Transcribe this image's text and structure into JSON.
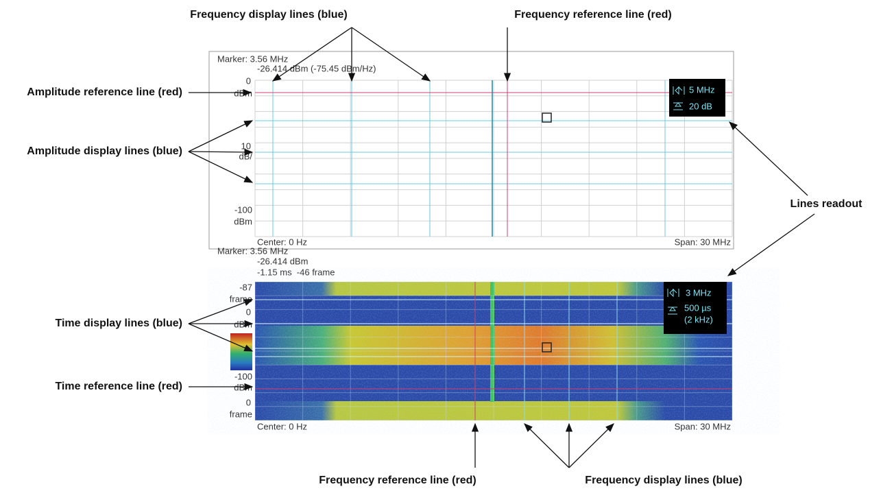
{
  "callouts": [
    "Frequency display lines (blue)",
    "Frequency reference line (red)",
    "Amplitude reference line (red)",
    "Amplitude display lines (blue)",
    "Lines readout",
    "Time display lines (blue)",
    "Time reference line (red)",
    "Frequency reference line (red)",
    "Frequency display lines (blue)"
  ],
  "spectrum_display": {
    "marker": "Marker: 3.56 MHz",
    "marker_readout": "-26.414 dBm (-75.45 dBm/Hz)",
    "top_label": "0",
    "top_unit": "dBm",
    "scale_label": "10",
    "scale_unit": "dB/",
    "bottom_label": "-100",
    "bottom_unit": "dBm",
    "center": "Center: 0 Hz",
    "span": "Span: 30 MHz",
    "readout_frequency": "5 MHz",
    "readout_amplitude": "20 dB"
  },
  "spectrogram_display": {
    "marker": "Marker: 3.56 MHz",
    "marker_amplitude": "-26.414 dBm",
    "marker_time": "-1.15 ms  -46 frame",
    "top_label": "-87",
    "top_unit": "frame",
    "color_top_label": "0",
    "color_top_unit": "dBm",
    "color_bottom_label": "-100",
    "color_bottom_unit": "dBm",
    "bottom_label": "0",
    "bottom_unit": "frame",
    "center": "Center: 0 Hz",
    "span": "Span: 30 MHz",
    "readout_frequency": "3 MHz",
    "readout_time": "500 µs",
    "readout_rate": "(2 kHz)"
  }
}
